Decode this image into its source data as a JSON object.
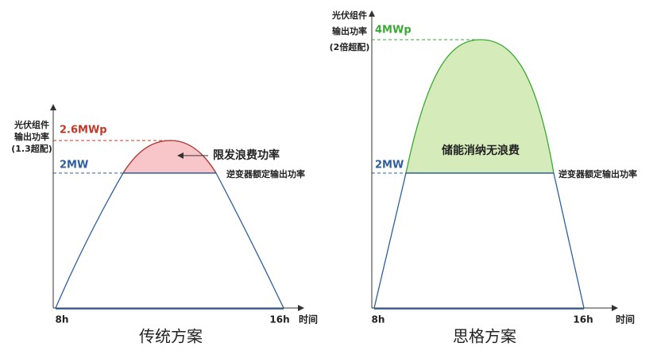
{
  "panels": [
    {
      "y_axis_label": [
        "光伏组件",
        "输出功率",
        "(1.3超配)"
      ],
      "peak_label": "2.6MWp",
      "rated_label": "2MW",
      "annotation": "限发浪费功率",
      "rated_line_label": "逆变器额定输出功率",
      "x_start": "8h",
      "x_end": "16h",
      "x_axis_label": "时间",
      "caption": "传统方案"
    },
    {
      "y_axis_label": [
        "光伏组件",
        "输出功率",
        "(2倍超配)"
      ],
      "peak_label": "4MWp",
      "rated_label": "2MW",
      "area_label": "储能消纳无浪费",
      "rated_line_label": "逆变器额定输出功率",
      "x_start": "8h",
      "x_end": "16h",
      "x_axis_label": "时间",
      "caption": "思格方案"
    }
  ]
}
